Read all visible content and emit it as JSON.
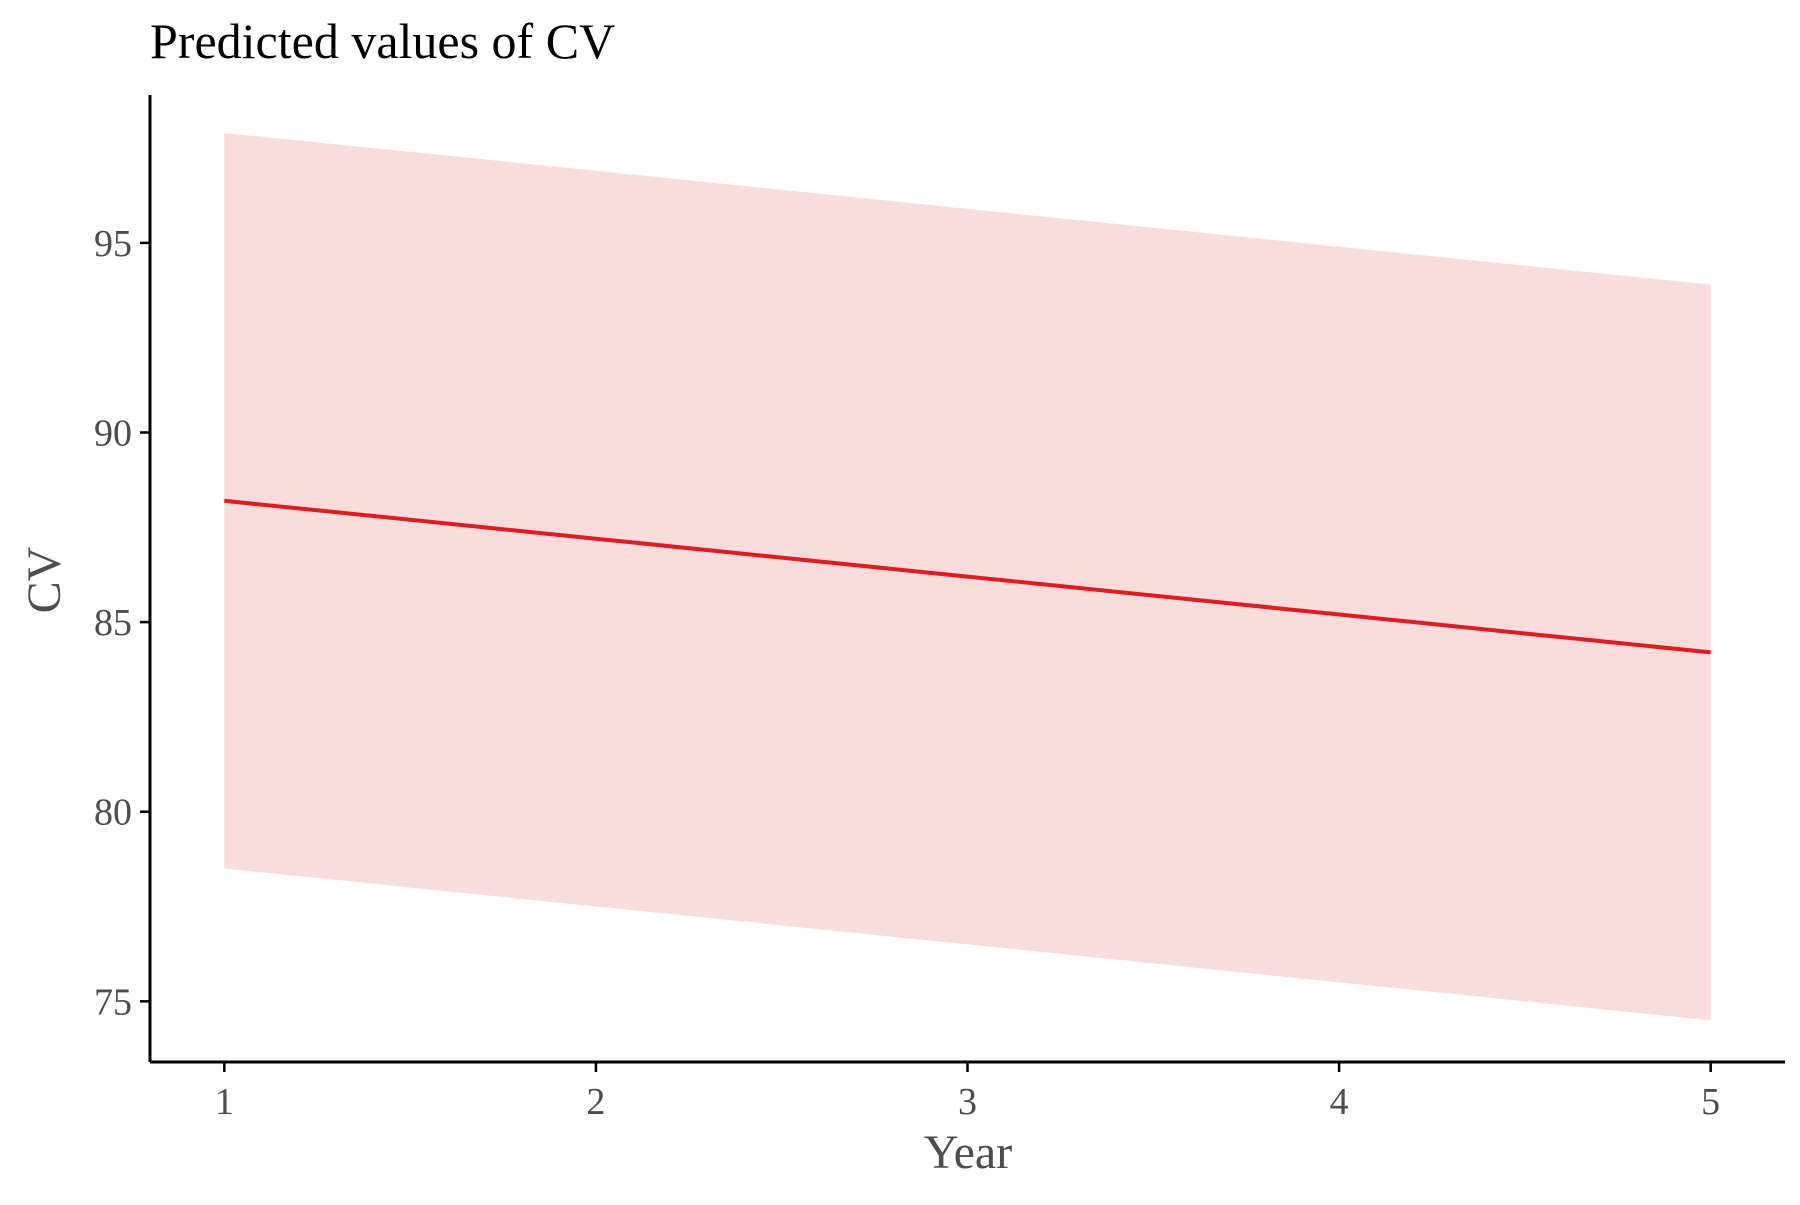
{
  "chart_data": {
    "type": "line",
    "title": "Predicted values of CV",
    "xlabel": "Year",
    "ylabel": "CV",
    "x": [
      1,
      2,
      3,
      4,
      5
    ],
    "xticks": [
      "1",
      "2",
      "3",
      "4",
      "5"
    ],
    "yticks": [
      "75",
      "80",
      "85",
      "90",
      "95"
    ],
    "xlim": [
      0.8,
      5.2
    ],
    "ylim": [
      73.4,
      98.9
    ],
    "grid": false,
    "legend": "none",
    "series": [
      {
        "values": [
          88.2,
          87.2,
          86.2,
          85.2,
          84.2
        ],
        "ci_low": [
          78.5,
          77.5,
          76.5,
          75.5,
          74.5
        ],
        "ci_high": [
          97.9,
          96.9,
          95.9,
          94.9,
          93.9
        ],
        "line_color": "#e41a1c",
        "band_color": "#f9dddd"
      }
    ]
  }
}
